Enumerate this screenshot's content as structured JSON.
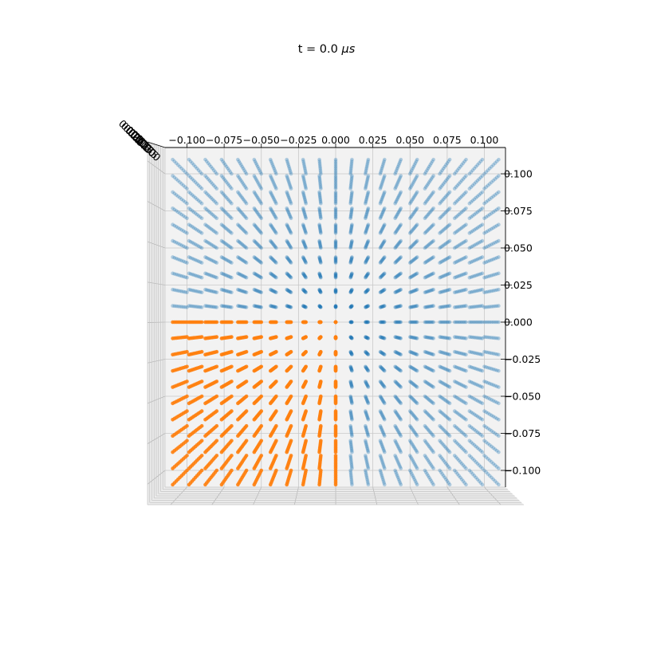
{
  "chart_data": {
    "type": "scatter",
    "projection": "3d",
    "title": "t = 0.0 μs",
    "title_prefix": "t = 0.0 ",
    "title_unit": "μs",
    "x_ticks": [
      "−0.100",
      "−0.075",
      "−0.050",
      "−0.025",
      "0.000",
      "0.025",
      "0.050",
      "0.075",
      "0.100"
    ],
    "y_ticks": [
      "0.100",
      "0.075",
      "0.050",
      "0.025",
      "0.000",
      "−0.025",
      "−0.050",
      "−0.075",
      "−0.100"
    ],
    "z_ticks": [
      "0.000",
      "0.025",
      "0.050",
      "0.075",
      "0.100",
      "0.125",
      "0.150",
      "0.175",
      "0.200"
    ],
    "xlim": [
      -0.11,
      0.11
    ],
    "ylim": [
      -0.11,
      0.11
    ],
    "grid": true,
    "series": [
      {
        "color": "#1f77b4",
        "grid_x": [
          -0.1,
          0.1
        ],
        "grid_y": [
          -0.1,
          0.1
        ],
        "points_per_axis": 21,
        "depth_layers": 9,
        "excluded_region": {
          "x": [
            -0.1,
            0.0
          ],
          "y": [
            -0.1,
            0.0
          ]
        }
      },
      {
        "color": "#ff7f0e",
        "grid_x": [
          -0.1,
          0.0
        ],
        "grid_y": [
          -0.1,
          0.0
        ],
        "points_per_axis": 11,
        "depth_layers": 9
      }
    ]
  }
}
